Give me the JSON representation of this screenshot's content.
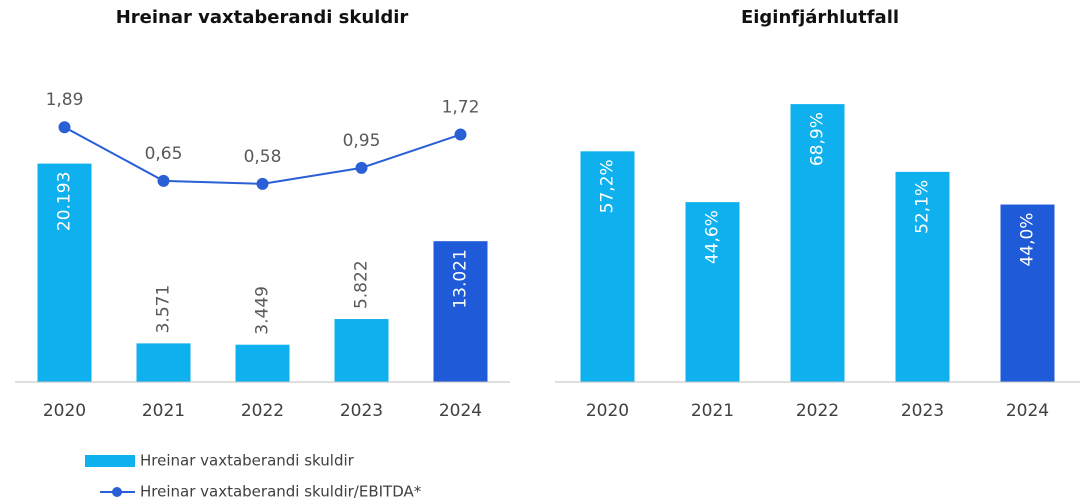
{
  "chart_data": [
    {
      "type": "bar",
      "title": "Hreinar vaxtaberandi skuldir",
      "categories": [
        "2020",
        "2021",
        "2022",
        "2023",
        "2024"
      ],
      "series": [
        {
          "name": "Hreinar vaxtaberandi skuldir",
          "type": "bar",
          "colors": [
            "#0fb0ee",
            "#0fb0ee",
            "#0fb0ee",
            "#0fb0ee",
            "#1f5bd8"
          ],
          "values": [
            20193,
            3571,
            3449,
            5822,
            13021
          ],
          "value_labels": [
            "20.193",
            "3.571",
            "3.449",
            "5.822",
            "13.021"
          ]
        },
        {
          "name": "Hreinar vaxtaberandi skuldir/EBITDA*",
          "type": "line",
          "axis": "y2",
          "color": "#2a5fd6",
          "values": [
            1.89,
            0.65,
            0.58,
            0.95,
            1.72
          ],
          "value_labels": [
            "1,89",
            "0,65",
            "0,58",
            "0,95",
            "1,72"
          ]
        }
      ],
      "ylim": [
        0,
        27000
      ],
      "y2lim": [
        -4,
        2.75
      ],
      "legend": "bottom"
    },
    {
      "type": "bar",
      "title": "Eiginfjárhlutfall",
      "categories": [
        "2020",
        "2021",
        "2022",
        "2023",
        "2024"
      ],
      "series": [
        {
          "name": "Eiginfjárhlutfall",
          "type": "bar",
          "colors": [
            "#0fb0ee",
            "#0fb0ee",
            "#0fb0ee",
            "#0fb0ee",
            "#1f5bd8"
          ],
          "values": [
            57.2,
            44.6,
            68.9,
            52.1,
            44.0
          ],
          "value_labels": [
            "57,2%",
            "44,6%",
            "68,9%",
            "52,1%",
            "44,0%"
          ]
        }
      ],
      "ylim": [
        0,
        72.4
      ]
    }
  ]
}
